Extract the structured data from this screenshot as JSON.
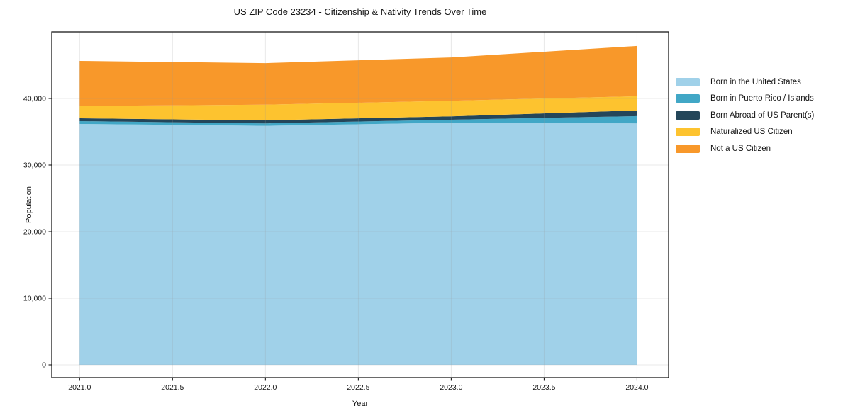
{
  "chart_data": {
    "type": "area",
    "stacked": true,
    "title": "US ZIP Code 23234 - Citizenship & Nativity Trends Over Time",
    "xlabel": "Year",
    "ylabel": "Population",
    "x": [
      2021,
      2022,
      2023,
      2024
    ],
    "series": [
      {
        "name": "Born in the United States",
        "color": "#a0d1e9",
        "values": [
          36170,
          35890,
          36350,
          36250
        ]
      },
      {
        "name": "Born in Puerto Rico / Islands",
        "color": "#41a7c6",
        "values": [
          430,
          360,
          460,
          1100
        ]
      },
      {
        "name": "Born Abroad of US Parent(s)",
        "color": "#24465a",
        "values": [
          420,
          460,
          500,
          850
        ]
      },
      {
        "name": "Naturalized US Citizen",
        "color": "#fdc32f",
        "values": [
          1860,
          2350,
          2350,
          2130
        ]
      },
      {
        "name": "Not a US Citizen",
        "color": "#f8982a",
        "values": [
          6760,
          6250,
          6500,
          7550
        ]
      }
    ],
    "totals": [
      45640,
      45310,
      46160,
      47880
    ],
    "xticks": [
      2021.0,
      2021.5,
      2022.0,
      2022.5,
      2023.0,
      2023.5,
      2024.0
    ],
    "xtick_labels": [
      "2021.0",
      "2021.5",
      "2022.0",
      "2022.5",
      "2023.0",
      "2023.5",
      "2024.0"
    ],
    "yticks": [
      0,
      10000,
      20000,
      30000,
      40000
    ],
    "ytick_labels": [
      "0",
      "10,000",
      "20,000",
      "30,000",
      "40,000"
    ],
    "xlim": [
      2020.85,
      2024.17
    ],
    "ylim": [
      -1915,
      50000
    ],
    "grid": true,
    "legend_position": "right-outside",
    "colors": {
      "plot_border": "#1a1a1a",
      "gridline": "#999999",
      "background": "#ffffff"
    }
  }
}
